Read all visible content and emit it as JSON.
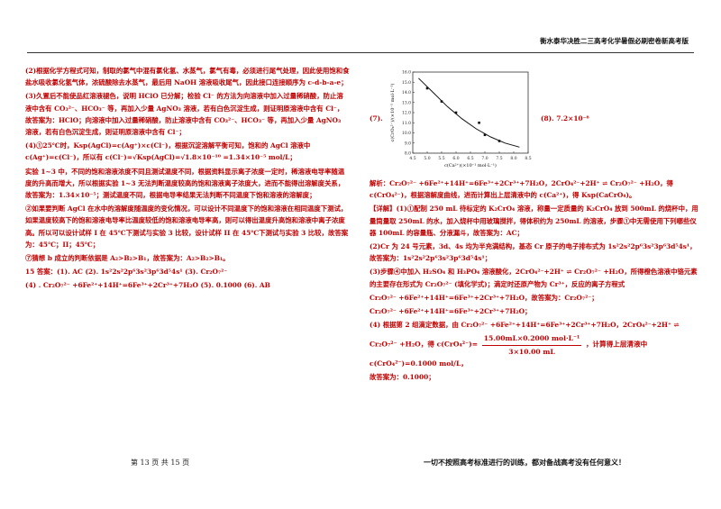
{
  "header": {
    "title": "衡水泰华决胜二三高考化学暑假必刷密卷新高考版"
  },
  "left": {
    "p1": "(2)根据化学方程式可知，制取的氯气中混有氯化氢、水蒸气，氯气有毒，必须进行尾气处理，因此使用饱和食盐水吸收氯化氢气体，浓硫酸除去水蒸气，最后用 NaOH 溶液吸收尾气，因此接口连接顺序为 c-d-b-a-e；",
    "p2": "(3)久置后不能使品红溶液褪色，说明 HClO 已分解；检验 Cl⁻ 的方法为向溶液中加入过量稀硝酸，防止溶液中含有 CO₃²⁻、HCO₃⁻ 等，再加入少量 AgNO₃ 溶液，若有白色沉淀生成，则证明原溶液中含有 Cl⁻，故答案为：HClO；向溶液中加入过量稀硝酸，防止溶液中含有 CO₃²⁻、HCO₃⁻ 等，再加入少量 AgNO₃ 溶液，若有白色沉淀生成，则证明原溶液中含有 Cl⁻；",
    "p3": "(4)①25℃时，Ksp(AgCl)=c(Ag⁺)×c(Cl⁻)，根据沉淀溶解平衡可知，饱和的 AgCl 溶液中 c(Ag⁺)=c(Cl⁻)，所以有 c(Cl⁻)=√Ksp(AgCl)=√1.8×10⁻¹⁰ =1.34×10⁻⁵ mol/L；",
    "p4": "实验 1~3 中，不同的饱和溶液浓度不同且测试温度不同，根据资料显示离子浓度一定时，稀溶液电导率随温度的升高而增大，所以根据实验 1~3 无法判断温度较高的饱和溶液离子浓度大，进而不能得出溶解度关系，故答案为：1.34×10⁻⁵；测试温度不同，根据电导率结果无法判断不同温度下饱和溶液的溶解度；",
    "p5": "②如果要判断 AgCl 在水中的溶解度随温度的变化情况，可以设计不同温度下的饱和溶液在相同温度下测试，如果温度较高下的饱和溶液电导率比温度较低的饱和溶液电导率高，则可以得出温度升高饱和溶液中离子浓度高。所以可以设计试样 I 在 45℃下测试与实验 3 比较，设计试样 II 在 45℃下测试与实验 3 比较，故答案为：45℃；II；45℃；",
    "p6": "⑦猜想 b 成立的判断依据是 A₂>B₂>B₁，故答案为：A₂>B₂>B₁。",
    "p7": "15 答案：(1). AC      (2). 1s²2s²2p⁶3s²3p⁶3d⁵4s¹      (3). Cr₂O₇²⁻",
    "p8": "(4) . Cr₂O₇²⁻ +6Fe²⁺+14H⁺=6Fe³⁺+2Cr³⁺+7H₂O    (5). 0.1000        (6). AB"
  },
  "right": {
    "label7": "(7).",
    "label8": "(8). 7.2×10⁻⁸",
    "p1": "解析：Cr₂O₇²⁻ +6Fe²⁺+14H⁺=6Fe³⁺+2Cr³⁺+7H₂O，2CrO₄²⁻+2H⁺ ⇌ Cr₂O₇²⁻ +H₂O，得 c(CrO₄²⁻)，根据溶解度曲线，进而计算出上层清液中的 c(Ca²⁺)，得 Ksp(CaCrO₄)。",
    "p2": "【详解】(1)①配制 250 mL 待标定的 K₂CrO₄ 溶液，称量一定质量的 K₂CrO₄ 放到 500mL 的烧杯中，用量筒量取 250mL 的水，加入烧杯中用玻璃搅拌，得体积约为 250mL 的溶液，步骤①中无需使用下列哪些仪器 100mL 的容量瓶、分液漏斗，故答案为：AC；",
    "p3": "(2)Cr 为 24 号元素，3d、4s 均为半充满结构，基态 Cr 原子的电子排布式为 1s²2s²2p⁶3s²3p⁶3d⁵4s¹，故答案为：1s²2s²2p⁶3s²3p⁶3d⁵4s¹；",
    "p4": "(3)步骤④中加入 H₂SO₄ 和 H₃PO₄ 溶液酸化，2CrO₄²⁻+2H⁺ ⇌ Cr₂O₇²⁻ +H₂O，所得橙色溶液中铬元素的主要存在形式为 Cr₂O₇²⁻ (填化学式)；滴定时还原产物为 Cr³⁺，反应的离子方程式",
    "p5": "Cr₂O₇²⁻ +6Fe²⁺+14H⁺=6Fe³⁺+2Cr³⁺+7H₂O，故答案为：Cr₂O₇²⁻；",
    "p6": "Cr₂O₇²⁻ +6Fe²⁺+14H⁺=6Fe³⁺+2Cr³⁺+7H₂O；",
    "p7": "(4) 根据第 2 组滴定数据，由 Cr₂O₇²⁻ +6Fe²⁺+14H⁺=6Fe³⁺+2Cr³⁺+7H₂O，2CrO₄²⁻+2H⁺ ⇌",
    "p8a": "Cr₂O₇²⁻ +H₂O，得 c(CrO₄²⁻)=",
    "frac_num": "15.00mL×0.2000 mol·L⁻¹",
    "frac_den": "3×10.00 mL",
    "p8b": "，计算得上层清液中 c(CrO₄²⁻)=0.1000 mol/L，",
    "p9": "故答案为：0.1000；"
  },
  "chart_data": {
    "type": "line",
    "title": "",
    "xlabel": "c(Ca²⁺)(×10⁻¹ mol·L⁻¹)",
    "ylabel": "c(CrO₄²⁻)/(×10⁻¹ mol·L⁻¹)",
    "xlim": [
      4.5,
      8.5
    ],
    "ylim": [
      8.0,
      16.0
    ],
    "x_ticks": [
      "4.5",
      "5.0",
      "5.5",
      "6.0",
      "6.5",
      "7.0",
      "7.5",
      "8.0",
      "8.5"
    ],
    "y_ticks": [
      "8.0",
      "9.0",
      "10.0",
      "11.0",
      "12.0",
      "13.0",
      "14.0",
      "15.0",
      "16.0"
    ],
    "points": [
      {
        "x": 5.0,
        "y": 14.4
      },
      {
        "x": 5.5,
        "y": 13.1
      },
      {
        "x": 6.0,
        "y": 12.0
      },
      {
        "x": 6.8,
        "y": 11.0
      },
      {
        "x": 7.0,
        "y": 9.8
      },
      {
        "x": 7.5,
        "y": 9.2
      }
    ],
    "curve": [
      {
        "x": 4.7,
        "y": 15.4
      },
      {
        "x": 5.2,
        "y": 14.0
      },
      {
        "x": 5.7,
        "y": 12.6
      },
      {
        "x": 6.2,
        "y": 11.4
      },
      {
        "x": 6.7,
        "y": 10.4
      },
      {
        "x": 7.2,
        "y": 9.6
      },
      {
        "x": 7.7,
        "y": 9.0
      },
      {
        "x": 8.2,
        "y": 8.6
      }
    ],
    "grid": false
  },
  "footer": {
    "page_info": "第 13 页      共 15 页",
    "slogan": "一切不按照高考标准进行的训练，都对备战高考没有任何意义！"
  }
}
